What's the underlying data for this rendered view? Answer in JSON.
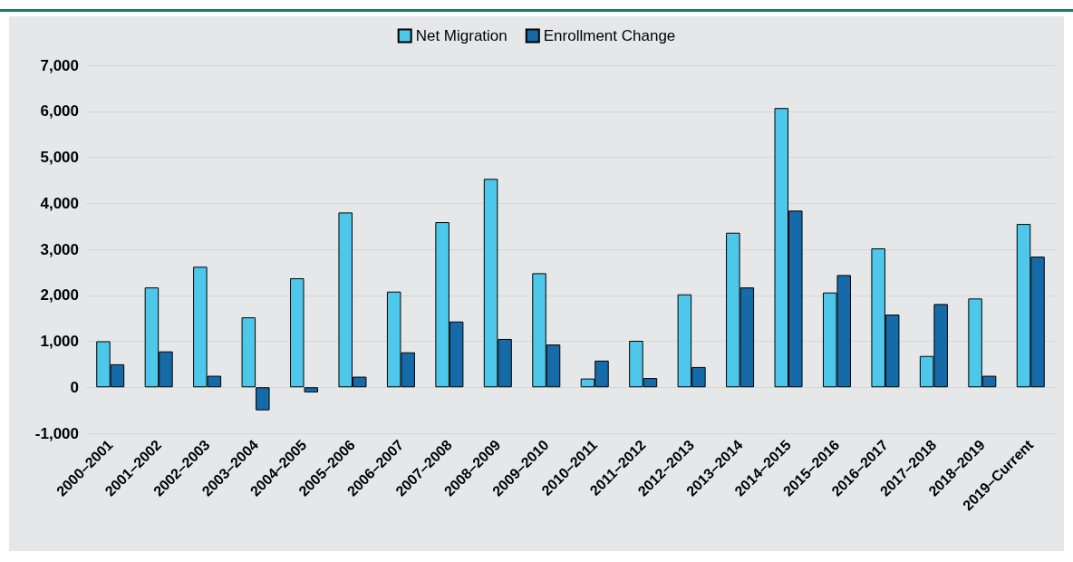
{
  "chart_data": {
    "type": "bar",
    "categories": [
      "2000–2001",
      "2001–2002",
      "2002–2003",
      "2003–2004",
      "2004–2005",
      "2005–2006",
      "2006–2007",
      "2007–2008",
      "2008–2009",
      "2009–2010",
      "2010–2011",
      "2011–2012",
      "2012–2013",
      "2013–2014",
      "2014–2015",
      "2015–2016",
      "2016–2017",
      "2017–2018",
      "2018–2019",
      "2019–Current"
    ],
    "series": [
      {
        "name": "Net Migration",
        "color": "#4dc8ea",
        "values": [
          1000,
          2170,
          2620,
          1520,
          2370,
          3800,
          2080,
          3590,
          4530,
          2480,
          190,
          1010,
          2020,
          3360,
          6070,
          2060,
          3020,
          680,
          1930,
          3550
        ]
      },
      {
        "name": "Enrollment Change",
        "color": "#156aa8",
        "values": [
          500,
          780,
          250,
          -500,
          -110,
          230,
          760,
          1430,
          1050,
          930,
          580,
          200,
          440,
          2170,
          3840,
          2440,
          1580,
          1810,
          250,
          2840
        ]
      }
    ],
    "ylim": [
      -1000,
      7000
    ],
    "yticks": [
      {
        "value": -1000,
        "label": "-1,000"
      },
      0,
      {
        "value": 1000,
        "label": "1,000"
      },
      {
        "value": 2000,
        "label": "2,000"
      },
      {
        "value": 3000,
        "label": "3,000"
      },
      {
        "value": 4000,
        "label": "4,000"
      },
      {
        "value": 5000,
        "label": "5,000"
      },
      {
        "value": 6000,
        "label": "6,000"
      },
      {
        "value": 7000,
        "label": "7,000"
      }
    ],
    "grid": "y",
    "legend": "top"
  }
}
